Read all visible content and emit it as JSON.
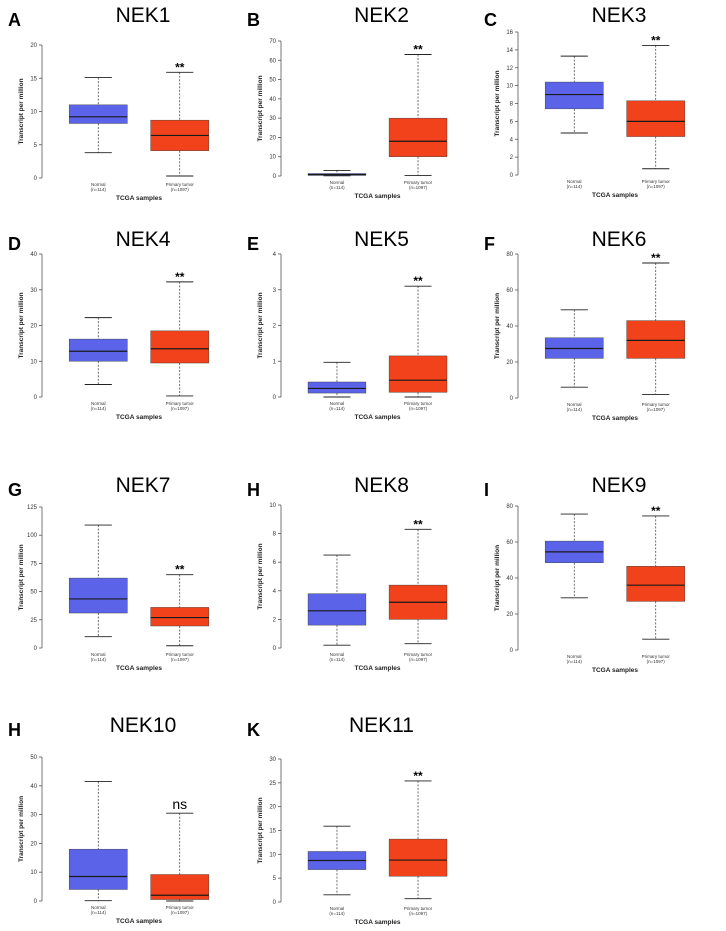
{
  "colors": {
    "normal": "#5b64e8",
    "tumor": "#f2421b",
    "median": "#1a1a1a",
    "axis": "#555555"
  },
  "chart_data": [
    {
      "type": "box",
      "letter": "A",
      "title": "NEK1",
      "ylabel": "Transcript per million",
      "xlabel": "TCGA samples",
      "ylim": [
        0,
        20
      ],
      "yticks": [
        0,
        5,
        10,
        15,
        20
      ],
      "groups": [
        {
          "name": "Normal",
          "n": "(n=114)",
          "min": 3.8,
          "q1": 8.2,
          "median": 9.2,
          "q3": 11.0,
          "max": 15.1
        },
        {
          "name": "Primary tumor",
          "n": "(n=1097)",
          "min": 0.3,
          "q1": 4.1,
          "median": 6.4,
          "q3": 8.7,
          "max": 15.9
        }
      ],
      "significance": "**"
    },
    {
      "type": "box",
      "letter": "B",
      "title": "NEK2",
      "ylabel": "Transcript per million",
      "xlabel": "TCGA samples",
      "ylim": [
        0,
        70
      ],
      "yticks": [
        0,
        10,
        20,
        30,
        40,
        50,
        60,
        70
      ],
      "groups": [
        {
          "name": "Normal",
          "n": "(n=114)",
          "min": 0.1,
          "q1": 0.3,
          "median": 0.7,
          "q3": 1.3,
          "max": 2.9
        },
        {
          "name": "Primary tumor",
          "n": "(n=1097)",
          "min": 0.3,
          "q1": 10.0,
          "median": 18.0,
          "q3": 30.0,
          "max": 63.0
        }
      ],
      "significance": "**"
    },
    {
      "type": "box",
      "letter": "C",
      "title": "NEK3",
      "ylabel": "Transcript per million",
      "xlabel": "TCGA samples",
      "ylim": [
        0,
        16
      ],
      "yticks": [
        0,
        2,
        4,
        6,
        8,
        10,
        12,
        14,
        16
      ],
      "groups": [
        {
          "name": "Normal",
          "n": "(n=114)",
          "min": 4.7,
          "q1": 7.4,
          "median": 9.0,
          "q3": 10.4,
          "max": 13.3
        },
        {
          "name": "Primary tumor",
          "n": "(n=1097)",
          "min": 0.7,
          "q1": 4.3,
          "median": 6.0,
          "q3": 8.3,
          "max": 14.5
        }
      ],
      "significance": "**"
    },
    {
      "type": "box",
      "letter": "D",
      "title": "NEK4",
      "ylabel": "Transcript per million",
      "xlabel": "TCGA samples",
      "ylim": [
        0,
        40
      ],
      "yticks": [
        0,
        10,
        20,
        30,
        40
      ],
      "groups": [
        {
          "name": "Normal",
          "n": "(n=114)",
          "min": 3.5,
          "q1": 10.0,
          "median": 12.8,
          "q3": 16.2,
          "max": 22.2
        },
        {
          "name": "Primary tumor",
          "n": "(n=1097)",
          "min": 0.3,
          "q1": 9.5,
          "median": 13.5,
          "q3": 18.5,
          "max": 32.2
        }
      ],
      "significance": "**"
    },
    {
      "type": "box",
      "letter": "E",
      "title": "NEK5",
      "ylabel": "Transcript per million",
      "xlabel": "TCGA samples",
      "ylim": [
        0,
        4
      ],
      "yticks": [
        0,
        1,
        2,
        3,
        4
      ],
      "groups": [
        {
          "name": "Normal",
          "n": "(n=114)",
          "min": 0.0,
          "q1": 0.11,
          "median": 0.24,
          "q3": 0.42,
          "max": 0.97
        },
        {
          "name": "Primary tumor",
          "n": "(n=1097)",
          "min": 0.0,
          "q1": 0.13,
          "median": 0.47,
          "q3": 1.15,
          "max": 3.1
        }
      ],
      "significance": "**"
    },
    {
      "type": "box",
      "letter": "F",
      "title": "NEK6",
      "ylabel": "Transcript per million",
      "xlabel": "TCGA samples",
      "ylim": [
        0,
        80
      ],
      "yticks": [
        0,
        20,
        40,
        60,
        80
      ],
      "groups": [
        {
          "name": "Normal",
          "n": "(n=114)",
          "min": 6.0,
          "q1": 22.0,
          "median": 27.5,
          "q3": 33.5,
          "max": 49.0
        },
        {
          "name": "Primary tumor",
          "n": "(n=1097)",
          "min": 2.0,
          "q1": 22.0,
          "median": 32.0,
          "q3": 43.0,
          "max": 75.0
        }
      ],
      "significance": "**"
    },
    {
      "type": "box",
      "letter": "G",
      "title": "NEK7",
      "ylabel": "Transcript per million",
      "xlabel": "TCGA samples",
      "ylim": [
        0,
        125
      ],
      "yticks": [
        0,
        25,
        50,
        75,
        100,
        125
      ],
      "groups": [
        {
          "name": "Normal",
          "n": "(n=114)",
          "min": 10.0,
          "q1": 31.0,
          "median": 43.5,
          "q3": 62.0,
          "max": 109.0
        },
        {
          "name": "Primary tumor",
          "n": "(n=1097)",
          "min": 2.0,
          "q1": 19.5,
          "median": 27.0,
          "q3": 36.0,
          "max": 65.0
        }
      ],
      "significance": "**"
    },
    {
      "type": "box",
      "letter": "H",
      "title": "NEK8",
      "ylabel": "Transcript per million",
      "xlabel": "TCGA samples",
      "ylim": [
        0,
        10
      ],
      "yticks": [
        0,
        2,
        4,
        6,
        8,
        10
      ],
      "groups": [
        {
          "name": "Normal",
          "n": "(n=114)",
          "min": 0.2,
          "q1": 1.6,
          "median": 2.6,
          "q3": 3.8,
          "max": 6.5
        },
        {
          "name": "Primary tumor",
          "n": "(n=1097)",
          "min": 0.3,
          "q1": 2.0,
          "median": 3.2,
          "q3": 4.4,
          "max": 8.3
        }
      ],
      "significance": "**"
    },
    {
      "type": "box",
      "letter": "I",
      "title": "NEK9",
      "ylabel": "Transcript per million",
      "xlabel": "TCGA samples",
      "ylim": [
        0,
        80
      ],
      "yticks": [
        0,
        20,
        40,
        60,
        80
      ],
      "groups": [
        {
          "name": "Normal",
          "n": "(n=114)",
          "min": 29.0,
          "q1": 48.5,
          "median": 54.5,
          "q3": 60.5,
          "max": 75.5
        },
        {
          "name": "Primary tumor",
          "n": "(n=1097)",
          "min": 6.0,
          "q1": 27.0,
          "median": 36.0,
          "q3": 46.5,
          "max": 74.5
        }
      ],
      "significance": "**"
    },
    {
      "type": "box",
      "letter": "H",
      "title": "NEK10",
      "ylabel": "Transcript per million",
      "xlabel": "TCGA samples",
      "ylim": [
        0,
        50
      ],
      "yticks": [
        0,
        10,
        20,
        30,
        40,
        50
      ],
      "groups": [
        {
          "name": "Normal",
          "n": "(n=114)",
          "min": 0.1,
          "q1": 4.0,
          "median": 8.5,
          "q3": 18.0,
          "max": 41.5
        },
        {
          "name": "Primary tumor",
          "n": "(n=1097)",
          "min": 0.0,
          "q1": 0.5,
          "median": 2.0,
          "q3": 9.2,
          "max": 30.5
        }
      ],
      "significance": "ns"
    },
    {
      "type": "box",
      "letter": "K",
      "title": "NEK11",
      "ylabel": "Transcript per million",
      "xlabel": "TCGA samples",
      "ylim": [
        0,
        30
      ],
      "yticks": [
        0,
        5,
        10,
        15,
        20,
        25,
        30
      ],
      "groups": [
        {
          "name": "Normal",
          "n": "(n=114)",
          "min": 1.5,
          "q1": 6.8,
          "median": 8.7,
          "q3": 10.6,
          "max": 15.9
        },
        {
          "name": "Primary tumor",
          "n": "(n=1097)",
          "min": 0.7,
          "q1": 5.4,
          "median": 8.8,
          "q3": 13.2,
          "max": 25.4
        }
      ],
      "significance": "**"
    }
  ]
}
